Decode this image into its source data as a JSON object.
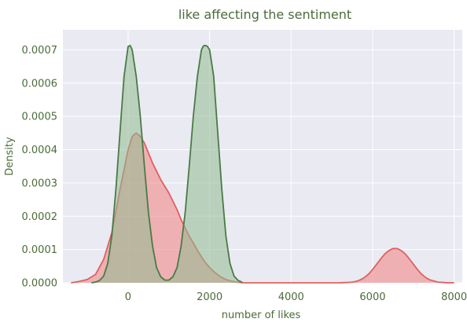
{
  "chart_data": {
    "type": "area",
    "title": "like affecting the sentiment",
    "xlabel": "number of likes",
    "ylabel": "Density",
    "xlim": [
      -1600,
      8200
    ],
    "ylim": [
      0,
      0.00076
    ],
    "x_ticks": [
      0,
      2000,
      4000,
      6000,
      8000
    ],
    "y_ticks": [
      0.0,
      0.0001,
      0.0002,
      0.0003,
      0.0004,
      0.0005,
      0.0006,
      0.0007
    ],
    "x_tick_labels": [
      "0",
      "2000",
      "4000",
      "6000",
      "8000"
    ],
    "y_tick_labels": [
      "0.0000",
      "0.0001",
      "0.0002",
      "0.0003",
      "0.0004",
      "0.0005",
      "0.0006",
      "0.0007"
    ],
    "grid": true,
    "background": "#eaeaf2",
    "series": [
      {
        "fill": "#f08080",
        "line": "#e06060",
        "x": [
          -1400,
          -1200,
          -1000,
          -800,
          -600,
          -400,
          -200,
          0,
          100,
          200,
          300,
          400,
          500,
          600,
          700,
          800,
          900,
          1000,
          1100,
          1200,
          1300,
          1400,
          1500,
          1600,
          1700,
          1800,
          1900,
          2000,
          2100,
          2200,
          2300,
          2400,
          2500,
          2600,
          2700,
          2800,
          3000,
          3200,
          3400,
          3600,
          3800,
          4000,
          4200,
          4400,
          4600,
          4800,
          5000,
          5200,
          5400,
          5500,
          5600,
          5700,
          5800,
          5900,
          6000,
          6100,
          6200,
          6300,
          6400,
          6500,
          6600,
          6700,
          6800,
          6900,
          7000,
          7100,
          7200,
          7300,
          7400,
          7600,
          7800,
          8000
        ],
        "y": [
          0.0,
          4e-06,
          1e-05,
          2.5e-05,
          7e-05,
          0.00015,
          0.00028,
          0.0004,
          0.00044,
          0.00045,
          0.00044,
          0.00042,
          0.00039,
          0.00036,
          0.000335,
          0.00031,
          0.00029,
          0.00027,
          0.000245,
          0.00022,
          0.00019,
          0.000165,
          0.00014,
          0.00012,
          9.8e-05,
          7.8e-05,
          6e-05,
          4.6e-05,
          3.4e-05,
          2.4e-05,
          1.6e-05,
          1e-05,
          6e-06,
          3.5e-06,
          1.5e-06,
          0.0,
          0.0,
          0.0,
          0.0,
          0.0,
          0.0,
          0.0,
          0.0,
          0.0,
          0.0,
          0.0,
          0.0,
          2e-07,
          1e-06,
          2e-06,
          4.5e-06,
          9e-06,
          1.6e-05,
          2.6e-05,
          4e-05,
          5.6e-05,
          7.2e-05,
          8.7e-05,
          9.7e-05,
          0.000103,
          0.000103,
          9.7e-05,
          8.7e-05,
          7.2e-05,
          5.6e-05,
          4e-05,
          2.6e-05,
          1.6e-05,
          9e-06,
          2e-06,
          5e-07,
          0.0
        ]
      },
      {
        "fill": "#8fbc8f",
        "line": "#4a7a46",
        "x": [
          -900,
          -800,
          -700,
          -600,
          -500,
          -400,
          -300,
          -200,
          -100,
          0,
          50,
          100,
          150,
          200,
          300,
          400,
          500,
          600,
          700,
          800,
          900,
          1000,
          1100,
          1200,
          1300,
          1400,
          1500,
          1600,
          1700,
          1800,
          1850,
          1900,
          1950,
          2000,
          2100,
          2200,
          2300,
          2400,
          2500,
          2600,
          2700,
          2800
        ],
        "y": [
          0.0,
          2e-06,
          7e-06,
          2e-05,
          5.8e-05,
          0.00014,
          0.00028,
          0.00045,
          0.00062,
          0.00071,
          0.000713,
          0.0007,
          0.00066,
          0.00062,
          0.0005,
          0.00035,
          0.00021,
          0.00011,
          4.5e-05,
          1.8e-05,
          8e-06,
          8e-06,
          1.8e-05,
          4.5e-05,
          0.00011,
          0.00021,
          0.00035,
          0.0005,
          0.00062,
          0.0007,
          0.000712,
          0.000713,
          0.00071,
          0.0007,
          0.00062,
          0.00045,
          0.00028,
          0.00014,
          5.8e-05,
          2e-05,
          7e-06,
          2e-06
        ]
      }
    ]
  },
  "colors": {
    "title": "#4b6b3a",
    "axis_text": "#4b6b3a",
    "grid": "#ffffff"
  }
}
